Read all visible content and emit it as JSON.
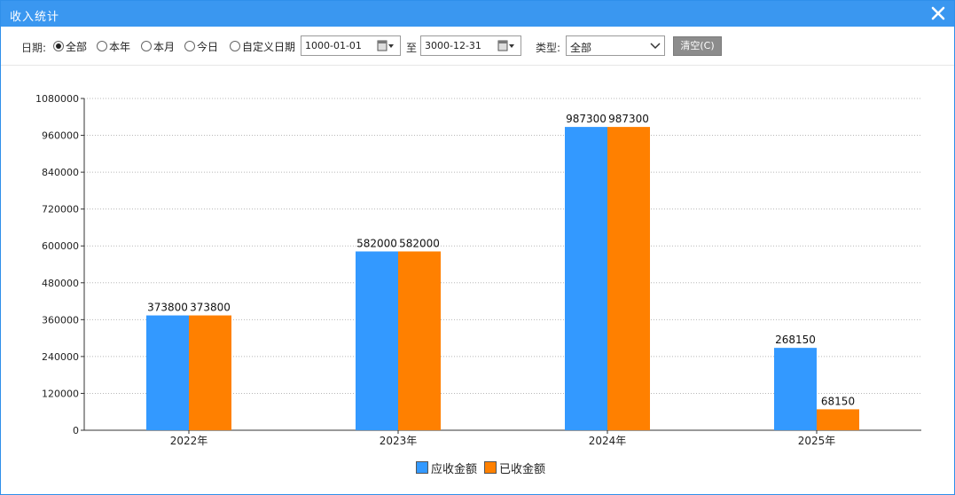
{
  "window": {
    "title": "收入统计"
  },
  "filters": {
    "date_label": "日期:",
    "options": [
      {
        "label": "全部",
        "selected": true
      },
      {
        "label": "本年",
        "selected": false
      },
      {
        "label": "本月",
        "selected": false
      },
      {
        "label": "今日",
        "selected": false
      },
      {
        "label": "自定义日期",
        "selected": false
      }
    ],
    "start_date": "1000-01-01",
    "to_label": "至",
    "end_date": "3000-12-31",
    "type_label": "类型:",
    "type_value": "全部",
    "clear_label": "清空(C)"
  },
  "chart_data": {
    "type": "bar",
    "categories": [
      "2022年",
      "2023年",
      "2024年",
      "2025年"
    ],
    "series": [
      {
        "name": "应收金额",
        "values": [
          373800,
          582000,
          987300,
          268150
        ],
        "color": "#3399ff"
      },
      {
        "name": "已收金额",
        "values": [
          373800,
          582000,
          987300,
          68150
        ],
        "color": "#ff8000"
      }
    ],
    "yticks": [
      "0",
      "120000",
      "240000",
      "360000",
      "480000",
      "600000",
      "720000",
      "840000",
      "960000",
      "1080000"
    ],
    "ylim": [
      0,
      1080000
    ],
    "grid": true,
    "legend": "bottom-center",
    "data_labels": true
  }
}
